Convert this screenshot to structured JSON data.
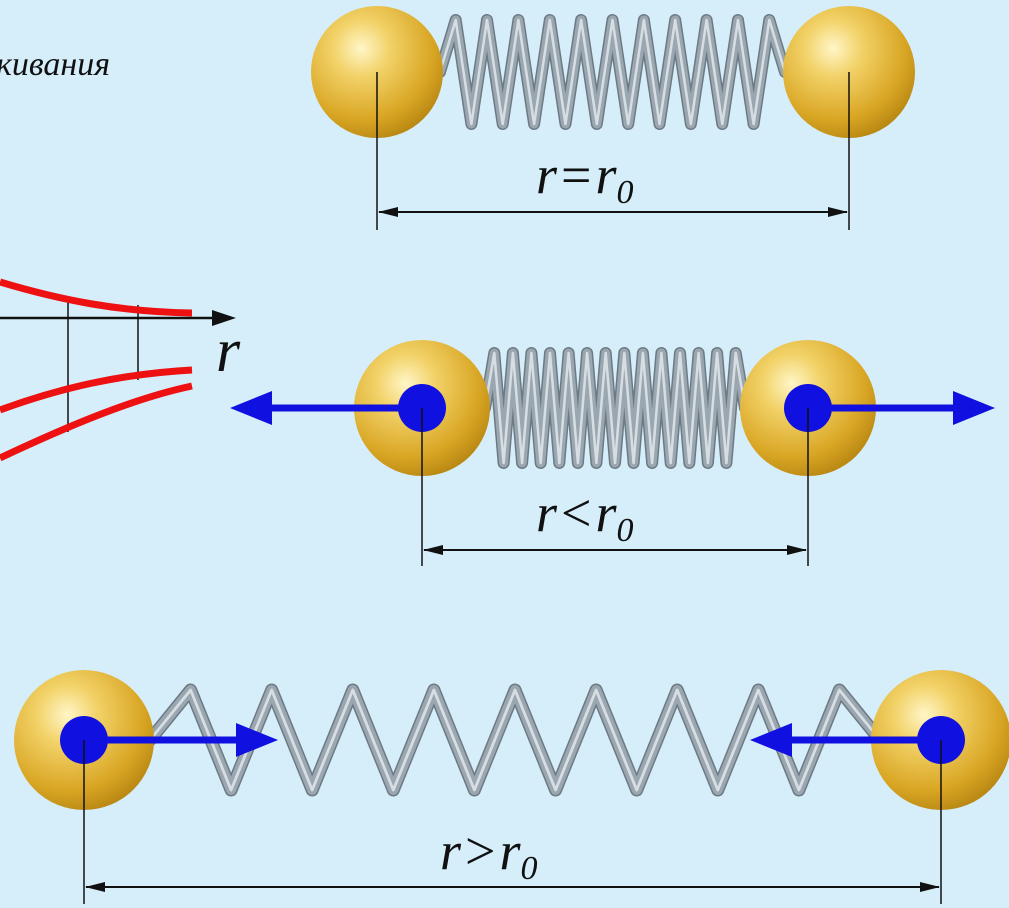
{
  "caption_fragment": "кивания",
  "graph": {
    "axis_label": "r"
  },
  "states": [
    {
      "id": "equilibrium",
      "lhs": "r",
      "op": "=",
      "rhs": "r",
      "sub": "0"
    },
    {
      "id": "compressed",
      "lhs": "r",
      "op": "<",
      "rhs": "r",
      "sub": "0"
    },
    {
      "id": "stretched",
      "lhs": "r",
      "op": ">",
      "rhs": "r",
      "sub": "0"
    }
  ],
  "colors": {
    "background": "#d5eefa",
    "ball": "#e8b93a",
    "spring": "#8f9ca5",
    "force_arrow": "#1010e0",
    "curve": "#ee1111",
    "dimension_line": "#111111"
  },
  "icons": [
    "ball-icon",
    "spring-icon",
    "force-arrow-icon",
    "dimension-arrow-icon"
  ]
}
